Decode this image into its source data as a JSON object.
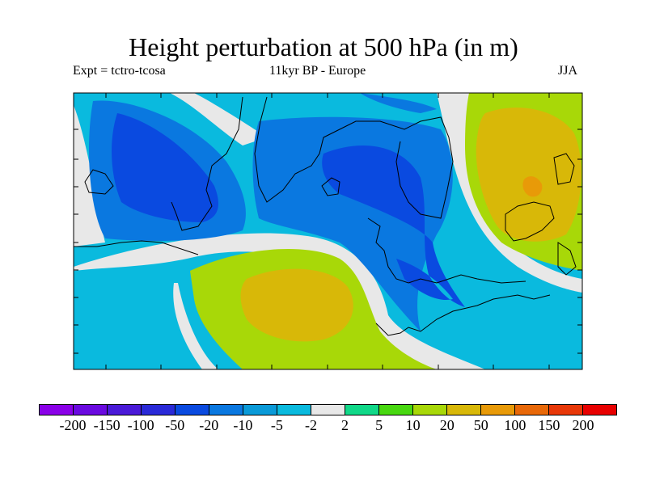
{
  "title": "Height perturbation at 500 hPa (in m)",
  "expt": "Expt = tctro-tcosa",
  "period": "11kyr BP - Europe",
  "season": "JJA",
  "colorbar": {
    "colors": [
      "#8a00e8",
      "#6a0ae0",
      "#4a1ad8",
      "#2a2ad8",
      "#0a4ae0",
      "#0a78e0",
      "#0a9ad8",
      "#0abade",
      "#e8e8e8",
      "#10d888",
      "#48d810",
      "#a8d808",
      "#d8b808",
      "#e89a08",
      "#e86808",
      "#e83808",
      "#e80000"
    ],
    "labels": [
      "-200",
      "-150",
      "-100",
      "-50",
      "-20",
      "-10",
      "-5",
      "-2",
      "2",
      "5",
      "10",
      "20",
      "50",
      "100",
      "150",
      "200"
    ]
  },
  "map": {
    "background_color": "#0a9ad8",
    "regions": [
      {
        "name": "weak-negative-band",
        "color": "#0abade"
      },
      {
        "name": "near-zero-band",
        "color": "#e8e8e8"
      },
      {
        "name": "strong-negative-region",
        "color": "#0a78e0"
      },
      {
        "name": "deep-negative-core",
        "color": "#0a4ae0"
      },
      {
        "name": "positive-high-south",
        "color": "#a8d808"
      },
      {
        "name": "positive-core-south",
        "color": "#d8b808"
      },
      {
        "name": "positive-high-east",
        "color": "#a8d808"
      },
      {
        "name": "positive-core-east",
        "color": "#d8b808"
      },
      {
        "name": "peak-east",
        "color": "#e89a08"
      }
    ]
  }
}
